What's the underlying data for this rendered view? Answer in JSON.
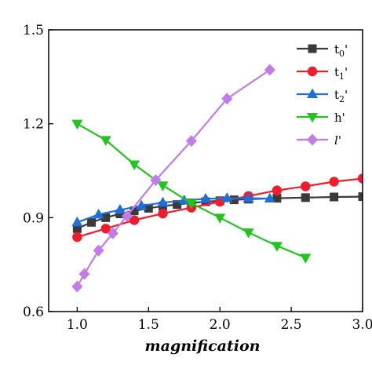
{
  "chart_data": {
    "type": "line",
    "title": "",
    "xlabel": "magnification",
    "ylabel": "",
    "xlim": [
      0.8,
      3.0
    ],
    "ylim": [
      0.6,
      1.5
    ],
    "xticks": [
      1.0,
      1.5,
      2.0,
      2.5,
      3.0
    ],
    "xtick_labels": [
      "1.0",
      "1.5",
      "2.0",
      "2.5",
      "3.0"
    ],
    "yticks": [
      0.6,
      0.9,
      1.2,
      1.5
    ],
    "ytick_labels": [
      "0.6",
      "0.9",
      "1.2",
      "1.5"
    ],
    "grid": false,
    "legend_position": "top-right",
    "series": [
      {
        "name": "t0'",
        "legend": {
          "base": "t",
          "sub": "0",
          "suffix": "'"
        },
        "color": "#3a3a3a",
        "marker": "square",
        "x": [
          1.0,
          1.1,
          1.2,
          1.3,
          1.4,
          1.5,
          1.6,
          1.7,
          1.8,
          1.9,
          2.0,
          2.1,
          2.2,
          2.4,
          2.6,
          2.8,
          3.0
        ],
        "y": [
          0.865,
          0.885,
          0.9,
          0.912,
          0.922,
          0.93,
          0.937,
          0.942,
          0.947,
          0.951,
          0.954,
          0.957,
          0.959,
          0.962,
          0.964,
          0.966,
          0.967
        ]
      },
      {
        "name": "t1'",
        "legend": {
          "base": "t",
          "sub": "1",
          "suffix": "'"
        },
        "color": "#ee1c2c",
        "marker": "circle",
        "x": [
          1.0,
          1.2,
          1.4,
          1.6,
          1.8,
          2.0,
          2.2,
          2.4,
          2.6,
          2.8,
          3.0
        ],
        "y": [
          0.838,
          0.865,
          0.892,
          0.913,
          0.932,
          0.951,
          0.969,
          0.987,
          1.0,
          1.015,
          1.025
        ]
      },
      {
        "name": "t2'",
        "legend": {
          "base": "t",
          "sub": "2",
          "suffix": "'"
        },
        "color": "#1e6fd9",
        "marker": "triangle-up",
        "x": [
          1.0,
          1.15,
          1.3,
          1.45,
          1.6,
          1.75,
          1.9,
          2.05,
          2.2,
          2.35
        ],
        "y": [
          0.885,
          0.91,
          0.925,
          0.938,
          0.948,
          0.955,
          0.96,
          0.962,
          0.962,
          0.961
        ]
      },
      {
        "name": "h'",
        "legend": {
          "base": "h",
          "sub": "",
          "suffix": "'"
        },
        "color": "#22c41e",
        "marker": "triangle-down",
        "x": [
          1.0,
          1.2,
          1.4,
          1.6,
          1.8,
          2.0,
          2.2,
          2.4,
          2.6
        ],
        "y": [
          1.2,
          1.148,
          1.07,
          1.003,
          0.946,
          0.9,
          0.853,
          0.81,
          0.772
        ]
      },
      {
        "name": "l'",
        "legend": {
          "base": "l",
          "sub": "",
          "suffix": "'",
          "italic": true
        },
        "color": "#c27be8",
        "marker": "diamond",
        "x": [
          1.0,
          1.05,
          1.15,
          1.25,
          1.55,
          1.8,
          2.05,
          2.35
        ],
        "y": [
          0.68,
          0.72,
          0.795,
          0.85,
          1.02,
          1.145,
          1.28,
          1.372
        ]
      },
      {
        "name": "l'-tail",
        "legend": null,
        "color": "#c27be8",
        "marker": "diamond",
        "x": [
          1.35
        ],
        "y": [
          0.905
        ]
      }
    ]
  }
}
